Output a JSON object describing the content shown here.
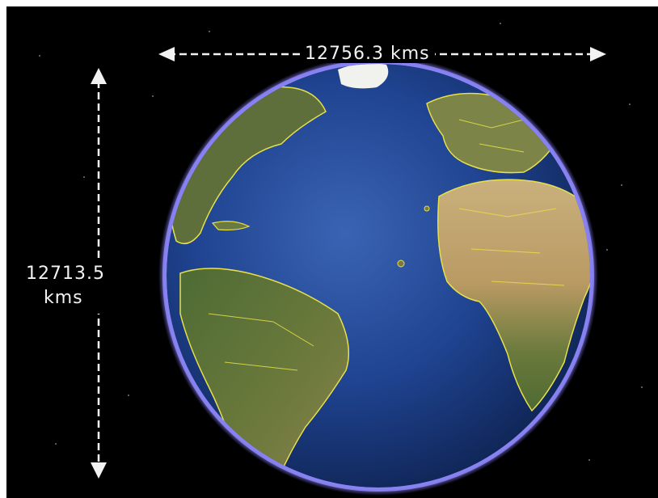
{
  "measurements": {
    "equatorial_diameter": "12756.3 kms",
    "polar_diameter_value": "12713.5",
    "polar_diameter_unit": "kms"
  },
  "colors": {
    "background": "#000000",
    "ocean": "#1d3f86",
    "land": "#6d7a3c",
    "borders": "#e8e04a",
    "atmosphere": "#8f87ff",
    "annotation": "#f2f2f2"
  }
}
